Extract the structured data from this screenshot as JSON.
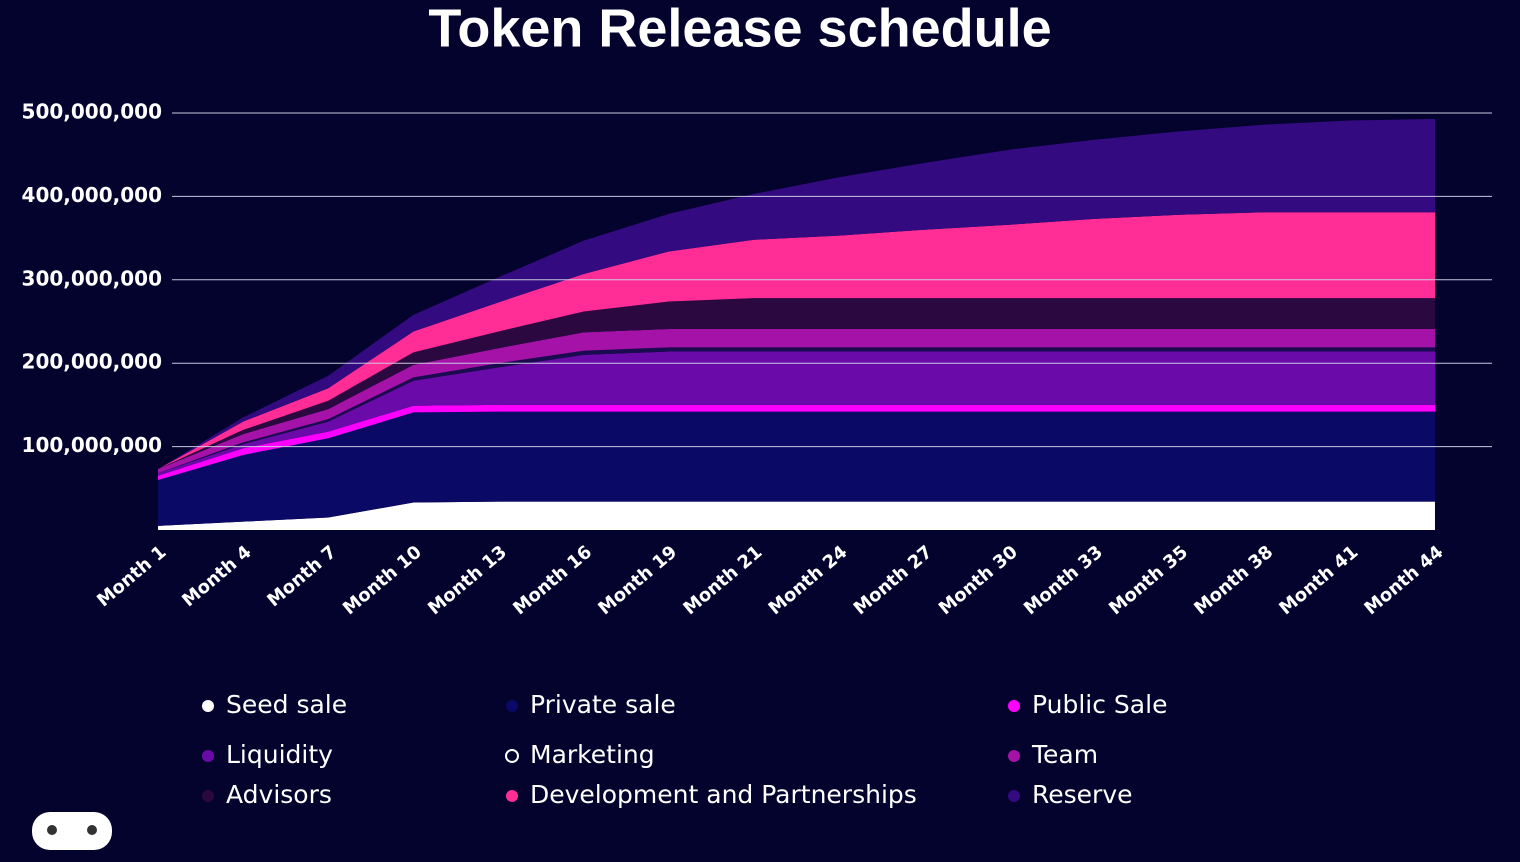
{
  "chart_data": {
    "type": "stacked_area",
    "title": "Token Release schedule",
    "categories": [
      "Month 1",
      "Month 4",
      "Month 7",
      "Month 10",
      "Month 13",
      "Month 16",
      "Month 19",
      "Month 21",
      "Month 24",
      "Month 27",
      "Month 30",
      "Month 33",
      "Month 35",
      "Month 38",
      "Month 41",
      "Month 44"
    ],
    "series": [
      {
        "name": "Seed sale",
        "color": "#ffffff",
        "values": [
          5000000,
          10000000,
          15000000,
          33000000,
          34000000,
          34000000,
          34000000,
          34000000,
          34000000,
          34000000,
          34000000,
          34000000,
          34000000,
          34000000,
          34000000,
          34000000
        ]
      },
      {
        "name": "Private sale",
        "color": "#0a0a66",
        "values": [
          55000000,
          80000000,
          95000000,
          108000000,
          108000000,
          108000000,
          108000000,
          108000000,
          108000000,
          108000000,
          108000000,
          108000000,
          108000000,
          108000000,
          108000000,
          108000000
        ]
      },
      {
        "name": "Public Sale",
        "color": "#ff00ff",
        "values": [
          5000000,
          8000000,
          8000000,
          8000000,
          8000000,
          8000000,
          8000000,
          8000000,
          8000000,
          8000000,
          8000000,
          8000000,
          8000000,
          8000000,
          8000000,
          8000000
        ]
      },
      {
        "name": "Liquidity",
        "color": "#6a0aa8",
        "values": [
          3000000,
          5000000,
          12000000,
          30000000,
          45000000,
          60000000,
          64000000,
          64000000,
          64000000,
          64000000,
          64000000,
          64000000,
          64000000,
          64000000,
          64000000,
          64000000
        ]
      },
      {
        "name": "Marketing",
        "color": "#1a0a50",
        "values": [
          0,
          2000000,
          3000000,
          4000000,
          5000000,
          5000000,
          5000000,
          5000000,
          5000000,
          5000000,
          5000000,
          5000000,
          5000000,
          5000000,
          5000000,
          5000000
        ]
      },
      {
        "name": "Team",
        "color": "#a512a8",
        "values": [
          5000000,
          10000000,
          12000000,
          15000000,
          18000000,
          22000000,
          22000000,
          22000000,
          22000000,
          22000000,
          22000000,
          22000000,
          22000000,
          22000000,
          22000000,
          22000000
        ]
      },
      {
        "name": "Advisors",
        "color": "#2c0840",
        "values": [
          0,
          5000000,
          10000000,
          15000000,
          20000000,
          25000000,
          33000000,
          37000000,
          37000000,
          37000000,
          37000000,
          37000000,
          37000000,
          37000000,
          37000000,
          37000000
        ]
      },
      {
        "name": "Development and Partnerships",
        "color": "#ff2d95",
        "values": [
          0,
          10000000,
          15000000,
          25000000,
          35000000,
          45000000,
          60000000,
          70000000,
          75000000,
          82000000,
          88000000,
          95000000,
          100000000,
          103000000,
          103000000,
          103000000
        ]
      },
      {
        "name": "Reserve",
        "color": "#330a80",
        "values": [
          0,
          5000000,
          15000000,
          20000000,
          30000000,
          40000000,
          45000000,
          55000000,
          70000000,
          80000000,
          90000000,
          95000000,
          100000000,
          105000000,
          110000000,
          112000000
        ]
      }
    ],
    "ylim": [
      0,
      500000000
    ],
    "yticks": [
      {
        "value": 100000000,
        "label": "100,000,000"
      },
      {
        "value": 200000000,
        "label": "200,000,000"
      },
      {
        "value": 300000000,
        "label": "300,000,000"
      },
      {
        "value": 400000000,
        "label": "400,000,000"
      },
      {
        "value": 500000000,
        "label": "500,000,000"
      }
    ],
    "grid": true
  }
}
